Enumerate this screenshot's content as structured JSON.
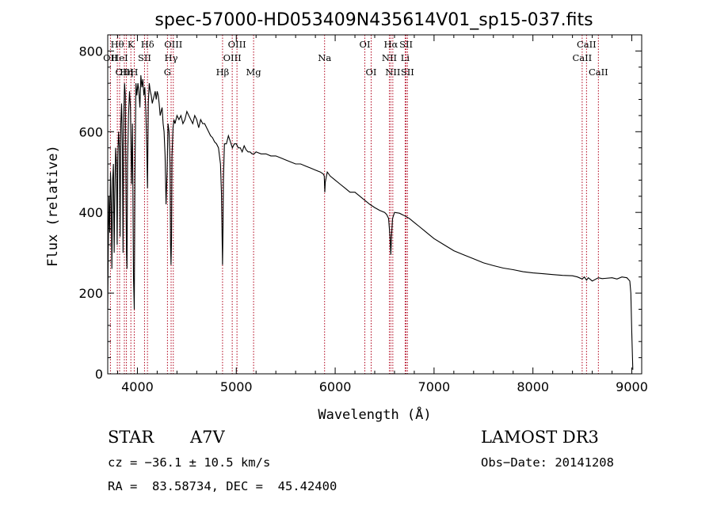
{
  "chart_data": {
    "type": "line",
    "title": "spec-57000-HD053409N435614V01_sp15-037.fits",
    "xlabel": "Wavelength (Å)",
    "ylabel": "Flux (relative)",
    "xlim": [
      3700,
      9100
    ],
    "ylim": [
      0,
      840
    ],
    "xticks": [
      4000,
      5000,
      6000,
      7000,
      8000,
      9000
    ],
    "yticks": [
      0,
      200,
      400,
      600,
      800
    ],
    "line_color": "#000000",
    "marker_color": "#b0001a",
    "series": [
      {
        "name": "flux",
        "x": [
          3700,
          3705,
          3712,
          3720,
          3728,
          3735,
          3742,
          3750,
          3758,
          3765,
          3772,
          3780,
          3788,
          3795,
          3802,
          3810,
          3818,
          3825,
          3832,
          3840,
          3848,
          3855,
          3862,
          3870,
          3878,
          3885,
          3890,
          3895,
          3900,
          3910,
          3920,
          3930,
          3940,
          3950,
          3960,
          3968,
          3975,
          3985,
          3995,
          4005,
          4015,
          4025,
          4035,
          4045,
          4055,
          4065,
          4075,
          4085,
          4095,
          4102,
          4110,
          4120,
          4130,
          4140,
          4150,
          4160,
          4170,
          4180,
          4190,
          4200,
          4210,
          4220,
          4230,
          4240,
          4250,
          4260,
          4270,
          4280,
          4290,
          4300,
          4310,
          4320,
          4330,
          4335,
          4340,
          4345,
          4350,
          4360,
          4370,
          4380,
          4400,
          4420,
          4440,
          4460,
          4480,
          4500,
          4520,
          4540,
          4560,
          4580,
          4600,
          4620,
          4640,
          4660,
          4680,
          4700,
          4720,
          4740,
          4760,
          4780,
          4800,
          4820,
          4840,
          4850,
          4855,
          4861,
          4866,
          4870,
          4880,
          4900,
          4920,
          4940,
          4960,
          4980,
          5000,
          5020,
          5040,
          5060,
          5080,
          5100,
          5120,
          5140,
          5160,
          5180,
          5200,
          5250,
          5300,
          5350,
          5400,
          5450,
          5500,
          5550,
          5600,
          5650,
          5700,
          5750,
          5800,
          5850,
          5880,
          5890,
          5895,
          5900,
          5920,
          5950,
          6000,
          6050,
          6100,
          6150,
          6200,
          6250,
          6300,
          6350,
          6400,
          6450,
          6500,
          6520,
          6540,
          6555,
          6563,
          6570,
          6580,
          6600,
          6650,
          6700,
          6750,
          6800,
          6850,
          6900,
          6950,
          7000,
          7100,
          7200,
          7300,
          7400,
          7500,
          7600,
          7700,
          7800,
          7900,
          8000,
          8100,
          8200,
          8300,
          8400,
          8450,
          8498,
          8520,
          8542,
          8560,
          8600,
          8662,
          8700,
          8800,
          8850,
          8900,
          8950,
          8980,
          8990,
          9000,
          9010
        ],
        "y": [
          160,
          300,
          440,
          350,
          500,
          420,
          260,
          480,
          520,
          300,
          450,
          560,
          520,
          320,
          540,
          600,
          560,
          340,
          620,
          670,
          560,
          300,
          640,
          720,
          690,
          430,
          300,
          260,
          520,
          640,
          700,
          660,
          470,
          620,
          240,
          160,
          480,
          720,
          690,
          720,
          700,
          660,
          740,
          710,
          730,
          690,
          710,
          650,
          560,
          460,
          670,
          720,
          700,
          690,
          670,
          680,
          690,
          700,
          680,
          700,
          690,
          670,
          640,
          650,
          660,
          620,
          600,
          540,
          420,
          500,
          620,
          600,
          520,
          320,
          270,
          330,
          540,
          610,
          630,
          620,
          640,
          630,
          640,
          620,
          630,
          650,
          640,
          630,
          620,
          640,
          630,
          610,
          630,
          620,
          620,
          610,
          600,
          590,
          585,
          575,
          570,
          560,
          520,
          450,
          360,
          270,
          360,
          480,
          570,
          570,
          590,
          575,
          560,
          570,
          570,
          560,
          560,
          550,
          565,
          555,
          550,
          550,
          545,
          545,
          550,
          545,
          545,
          540,
          540,
          535,
          530,
          525,
          520,
          520,
          515,
          510,
          505,
          500,
          495,
          490,
          450,
          475,
          500,
          490,
          480,
          470,
          460,
          450,
          450,
          440,
          430,
          420,
          412,
          405,
          400,
          395,
          385,
          340,
          295,
          340,
          385,
          400,
          398,
          392,
          385,
          375,
          365,
          355,
          345,
          335,
          320,
          305,
          295,
          285,
          275,
          268,
          262,
          258,
          253,
          250,
          248,
          246,
          244,
          243,
          240,
          235,
          240,
          232,
          238,
          230,
          238,
          236,
          238,
          235,
          240,
          238,
          230,
          200,
          100,
          10
        ]
      }
    ],
    "line_markers": [
      {
        "label": "OII",
        "wavelength": 3727,
        "row": 1
      },
      {
        "label": "Hθ",
        "wavelength": 3797,
        "row": 0
      },
      {
        "label": "HeI",
        "wavelength": 3820,
        "row": 1
      },
      {
        "label": "OIII",
        "wavelength": 3868,
        "row": 2
      },
      {
        "label": "K",
        "wavelength": 3934,
        "row": 0
      },
      {
        "label": "Hη",
        "wavelength": 3889,
        "row": 2
      },
      {
        "label": "H",
        "wavelength": 3968,
        "row": 2
      },
      {
        "label": "SII",
        "wavelength": 4072,
        "row": 1
      },
      {
        "label": "Hδ",
        "wavelength": 4102,
        "row": 0
      },
      {
        "label": "G",
        "wavelength": 4304,
        "row": 2
      },
      {
        "label": "Hγ",
        "wavelength": 4341,
        "row": 1
      },
      {
        "label": "OIII",
        "wavelength": 4363,
        "row": 0
      },
      {
        "label": "Hβ",
        "wavelength": 4861,
        "row": 2
      },
      {
        "label": "OIII",
        "wavelength": 4959,
        "row": 1
      },
      {
        "label": "OIII",
        "wavelength": 5007,
        "row": 0
      },
      {
        "label": "Mg",
        "wavelength": 5175,
        "row": 2
      },
      {
        "label": "Na",
        "wavelength": 5893,
        "row": 1
      },
      {
        "label": "OI",
        "wavelength": 6300,
        "row": 0
      },
      {
        "label": "OI",
        "wavelength": 6364,
        "row": 2
      },
      {
        "label": "NII",
        "wavelength": 6548,
        "row": 1
      },
      {
        "label": "Hα",
        "wavelength": 6563,
        "row": 0
      },
      {
        "label": "NII",
        "wavelength": 6583,
        "row": 2
      },
      {
        "label": "Li",
        "wavelength": 6708,
        "row": 1
      },
      {
        "label": "SII",
        "wavelength": 6717,
        "row": 0
      },
      {
        "label": "SII",
        "wavelength": 6731,
        "row": 2
      },
      {
        "label": "CaII",
        "wavelength": 8498,
        "row": 1
      },
      {
        "label": "CaII",
        "wavelength": 8542,
        "row": 0
      },
      {
        "label": "CaII",
        "wavelength": 8662,
        "row": 2
      }
    ]
  },
  "info": {
    "object_class": "STAR",
    "subclass": "A7V",
    "survey": "LAMOST DR3",
    "cz": "cz = −36.1 ± 10.5 km/s",
    "obs_date": "Obs−Date: 20141208",
    "coords": "RA =  83.58734, DEC =  45.42400"
  }
}
